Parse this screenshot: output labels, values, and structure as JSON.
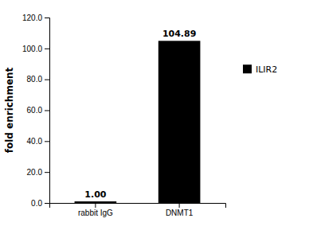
{
  "chart_data": {
    "type": "bar",
    "categories": [
      "rabbit IgG",
      "DNMT1"
    ],
    "series": [
      {
        "name": "ILIR2",
        "color": "#000000",
        "values": [
          1.0,
          104.89
        ],
        "value_labels": [
          "1.00",
          "104.89"
        ]
      }
    ],
    "ylabel": "fold enrichment",
    "ylim": [
      0,
      120
    ],
    "yticks": [
      {
        "value": 0,
        "label": "0.0"
      },
      {
        "value": 20,
        "label": "20.0"
      },
      {
        "value": 40,
        "label": "40.0"
      },
      {
        "value": 60,
        "label": "60.0"
      },
      {
        "value": 80,
        "label": "80.0"
      },
      {
        "value": 100,
        "label": "100.0"
      },
      {
        "value": 120,
        "label": "120.0"
      }
    ],
    "data_labels": true,
    "legend": "right",
    "grid": false
  }
}
